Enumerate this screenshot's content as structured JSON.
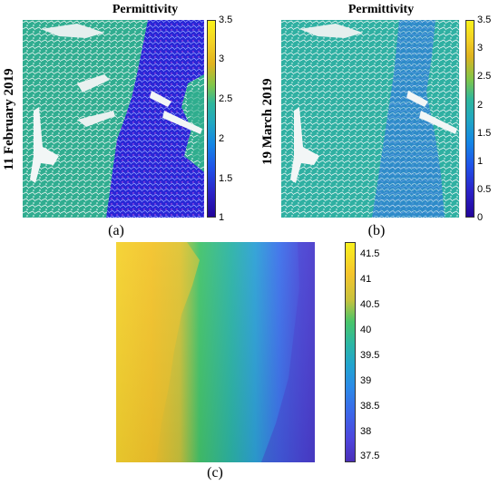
{
  "panels": [
    {
      "id": "a",
      "title": "Permittivity",
      "side_label": "11 February 2019",
      "letter": "(a)",
      "colorbar_ticks": [
        "3.5",
        "3",
        "2.5",
        "2",
        "1.5",
        "1"
      ]
    },
    {
      "id": "b",
      "title": "Permittivity",
      "side_label": "19 March 2019",
      "letter": "(b)",
      "colorbar_ticks": [
        "3.5",
        "3",
        "2.5",
        "2",
        "1.5",
        "1",
        "0.5",
        "0"
      ]
    },
    {
      "id": "c",
      "title": "",
      "side_label": "",
      "letter": "(c)",
      "colorbar_ticks": [
        "41.5",
        "41",
        "40.5",
        "40",
        "39.5",
        "39",
        "38.5",
        "38",
        "37.5"
      ]
    }
  ],
  "colors": {
    "teal_surface": "#2fae8e",
    "blue_surface": "#2c2ad8",
    "snow": "#f2f6f6",
    "c_yellow": "#f6c92a",
    "c_green": "#45c16a",
    "c_blue": "#3b79e8",
    "c_violet": "#4a3fcf"
  }
}
